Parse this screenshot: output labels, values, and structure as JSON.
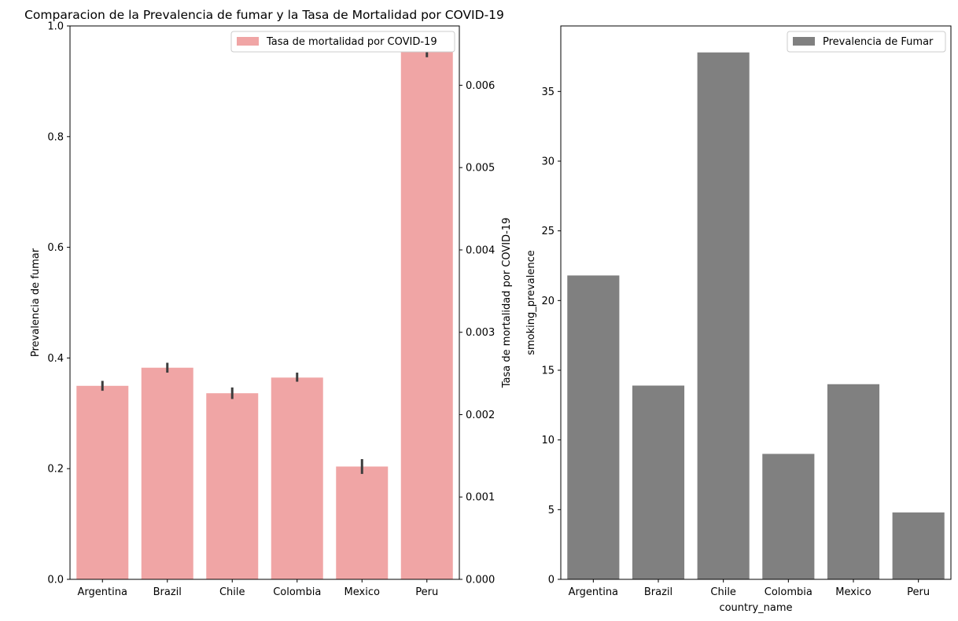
{
  "chart_data": [
    {
      "type": "bar",
      "title": "Comparacion de la Prevalencia de fumar y la Tasa de Mortalidad por COVID-19",
      "categories": [
        "Argentina",
        "Brazil",
        "Chile",
        "Colombia",
        "Mexico",
        "Peru"
      ],
      "xlabel": "",
      "ylabel": "Prevalencia de fumar",
      "ylim": [
        0,
        1.0
      ],
      "yticks": [
        "0.0",
        "0.2",
        "0.4",
        "0.6",
        "0.8",
        "1.0"
      ],
      "y2label": "Tasa de mortalidad por COVID-19",
      "y2lim": [
        0,
        0.00672
      ],
      "y2ticks": [
        "0.000",
        "0.001",
        "0.002",
        "0.003",
        "0.004",
        "0.005",
        "0.006"
      ],
      "series": [
        {
          "name": "Tasa de mortalidad por COVID-19",
          "axis": "right",
          "color": "#f0a5a5",
          "values": [
            0.00235,
            0.00257,
            0.00226,
            0.00245,
            0.00137,
            0.00642
          ],
          "error_low": [
            0.00229,
            0.00251,
            0.00219,
            0.0024,
            0.00128,
            0.00634
          ],
          "error_high": [
            0.00241,
            0.00263,
            0.00233,
            0.00251,
            0.00146,
            0.0065
          ]
        }
      ],
      "legend": "top-right",
      "grid": false
    },
    {
      "type": "bar",
      "title": "",
      "categories": [
        "Argentina",
        "Brazil",
        "Chile",
        "Colombia",
        "Mexico",
        "Peru"
      ],
      "xlabel": "country_name",
      "ylabel": "smoking_prevalence",
      "ylim": [
        0,
        39.7
      ],
      "yticks": [
        "0",
        "5",
        "10",
        "15",
        "20",
        "25",
        "30",
        "35"
      ],
      "series": [
        {
          "name": "Prevalencia de Fumar",
          "color": "#808080",
          "values": [
            21.8,
            13.9,
            37.8,
            9.0,
            14.0,
            4.8
          ]
        }
      ],
      "legend": "top-right",
      "grid": false
    }
  ]
}
